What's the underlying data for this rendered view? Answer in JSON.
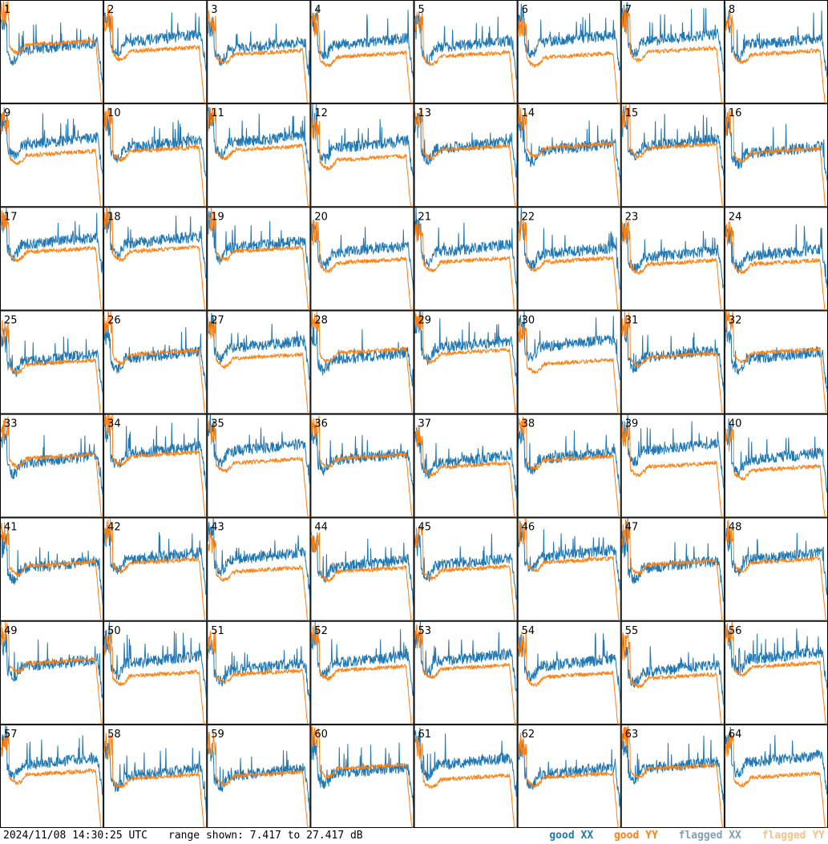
{
  "chart_data": {
    "type": "line",
    "title": "",
    "xlabel": "",
    "ylabel": "",
    "ylim": [
      7.417,
      27.417
    ],
    "grid": false,
    "panel_labels": [
      "1",
      "2",
      "3",
      "4",
      "5",
      "6",
      "7",
      "8",
      "9",
      "10",
      "11",
      "12",
      "13",
      "14",
      "15",
      "16",
      "17",
      "18",
      "19",
      "20",
      "21",
      "22",
      "23",
      "24",
      "25",
      "26",
      "27",
      "28",
      "29",
      "30",
      "31",
      "32",
      "33",
      "34",
      "35",
      "36",
      "37",
      "38",
      "39",
      "40",
      "41",
      "42",
      "43",
      "44",
      "45",
      "46",
      "47",
      "48",
      "49",
      "50",
      "51",
      "52",
      "53",
      "54",
      "55",
      "56",
      "57",
      "58",
      "59",
      "60",
      "61",
      "62",
      "63",
      "64"
    ],
    "series": [
      {
        "name": "good XX",
        "color": "#1f77b4"
      },
      {
        "name": "good YY",
        "color": "#ff7f0e"
      },
      {
        "name": "flagged XX",
        "color": "#7f9fb9"
      },
      {
        "name": "flagged YY",
        "color": "#f8c08a"
      }
    ]
  },
  "footer": {
    "timestamp": "2024/11/08 14:30:25 UTC",
    "range": "range shown: 7.417 to 27.417 dB",
    "legend": [
      {
        "label": "good XX",
        "color": "#1f77b4"
      },
      {
        "label": "good YY",
        "color": "#ff7f0e"
      },
      {
        "label": "flagged XX",
        "color": "#7f9fb9"
      },
      {
        "label": "flagged YY",
        "color": "#f8c08a"
      }
    ]
  }
}
